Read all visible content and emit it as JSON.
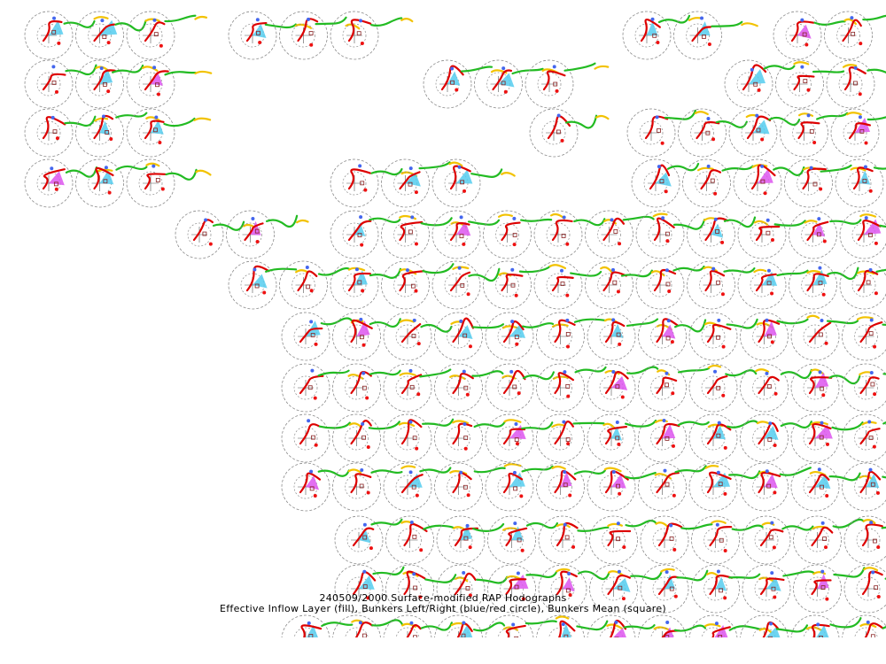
{
  "title": "240509/2000 Surface-modified RAP Hodographs",
  "subtitle": "Effective Inflow Layer (fill), Bunkers Left/Right (blue/red circle), Bunkers Mean (square)",
  "colors": {
    "ring": "#8a8a8a",
    "axes": "#555555",
    "low_level": "#dd0000",
    "mid_level": "#22bb22",
    "upper_level": "#f2c200",
    "effective_fill": "#55ccee",
    "low_hodo_alt": "#dd55ee",
    "bunkers_left": "#4466ee",
    "bunkers_right": "#ee1111",
    "bunkers_mean": "#882222"
  },
  "icons": {
    "station_ring": "dashed-circle-icon",
    "bunkers_left": "blue-dot-icon",
    "bunkers_right": "red-dot-icon",
    "bunkers_mean": "square-icon"
  }
}
